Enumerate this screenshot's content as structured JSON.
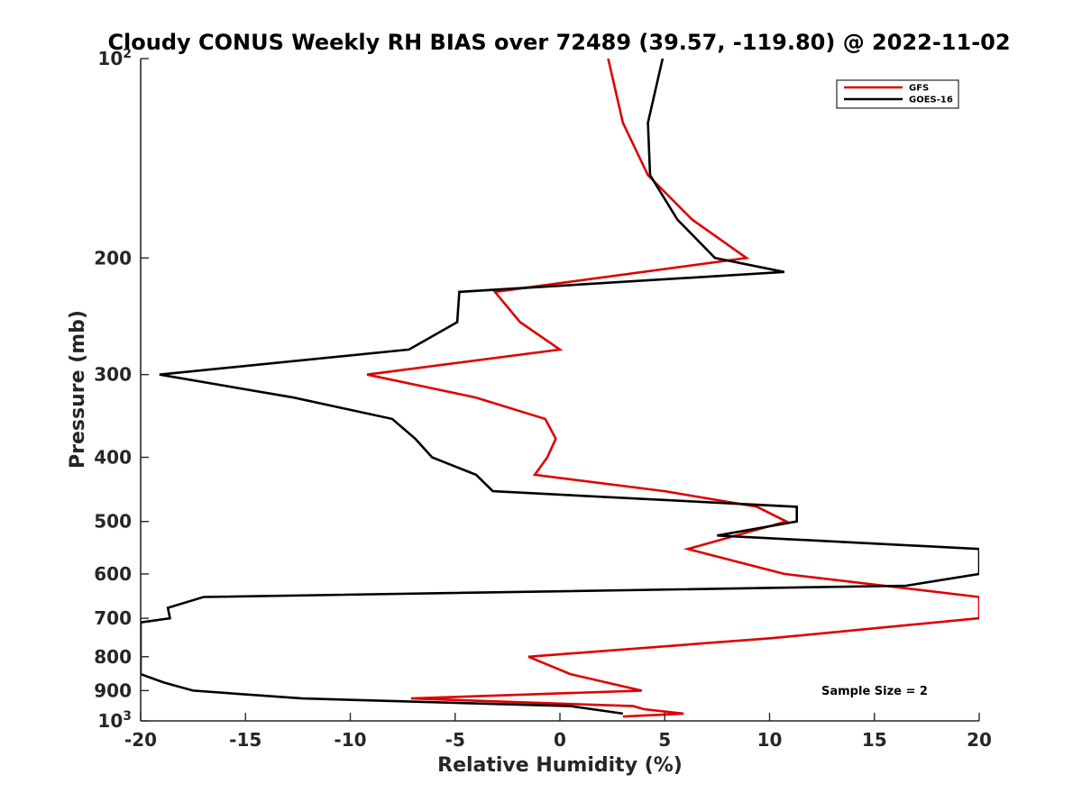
{
  "chart_data": {
    "type": "line",
    "title": "Cloudy CONUS Weekly RH BIAS over 72489 (39.57, -119.80) @ 2022-11-02",
    "xlabel": "Relative Humidity (%)",
    "ylabel": "Pressure (mb)",
    "xlim": [
      -20,
      20
    ],
    "ylim": [
      100,
      1000
    ],
    "y_scale": "log",
    "y_reversed": true,
    "grid": false,
    "legend_position": "top-right",
    "x_ticks": [
      -20,
      -15,
      -10,
      -5,
      0,
      5,
      10,
      15,
      20
    ],
    "x_tick_labels": [
      "-20",
      "-15",
      "-10",
      "-5",
      "0",
      "5",
      "10",
      "15",
      "20"
    ],
    "y_ticks": [
      {
        "value": 100,
        "base": "10",
        "exp": "2"
      },
      {
        "value": 200,
        "label": "200"
      },
      {
        "value": 300,
        "label": "300"
      },
      {
        "value": 400,
        "label": "400"
      },
      {
        "value": 500,
        "label": "500"
      },
      {
        "value": 600,
        "label": "600"
      },
      {
        "value": 700,
        "label": "700"
      },
      {
        "value": 800,
        "label": "800"
      },
      {
        "value": 900,
        "label": "900"
      },
      {
        "value": 1000,
        "base": "10",
        "exp": "3"
      }
    ],
    "series": [
      {
        "name": "GFS",
        "color": "#e00000",
        "points": [
          [
            2.3,
            100
          ],
          [
            3.0,
            125
          ],
          [
            4.2,
            150
          ],
          [
            6.3,
            175
          ],
          [
            8.9,
            200
          ],
          [
            -3.1,
            225
          ],
          [
            -1.9,
            250
          ],
          [
            0.0,
            275
          ],
          [
            -9.2,
            300
          ],
          [
            -4.0,
            325
          ],
          [
            -0.7,
            350
          ],
          [
            -0.2,
            375
          ],
          [
            -0.6,
            400
          ],
          [
            -1.2,
            425
          ],
          [
            5.0,
            450
          ],
          [
            9.4,
            475
          ],
          [
            10.8,
            500
          ],
          [
            6.1,
            550
          ],
          [
            10.7,
            600
          ],
          [
            20.0,
            650
          ],
          [
            20.0,
            700
          ],
          [
            10.1,
            750
          ],
          [
            -1.5,
            800
          ],
          [
            0.5,
            850
          ],
          [
            3.9,
            900
          ],
          [
            -7.1,
            925
          ],
          [
            3.5,
            950
          ],
          [
            4.0,
            960
          ],
          [
            5.9,
            975
          ],
          [
            3.0,
            985
          ]
        ]
      },
      {
        "name": "GOES-16",
        "color": "#000000",
        "points": [
          [
            4.9,
            100
          ],
          [
            4.2,
            125
          ],
          [
            4.3,
            150
          ],
          [
            5.6,
            175
          ],
          [
            7.4,
            200
          ],
          [
            10.7,
            210
          ],
          [
            -4.8,
            225
          ],
          [
            -4.9,
            250
          ],
          [
            -7.2,
            275
          ],
          [
            -19.1,
            300
          ],
          [
            -12.7,
            325
          ],
          [
            -8.0,
            350
          ],
          [
            -6.9,
            375
          ],
          [
            -6.1,
            400
          ],
          [
            -4.0,
            425
          ],
          [
            -3.2,
            450
          ],
          [
            11.3,
            475
          ],
          [
            11.3,
            500
          ],
          [
            7.5,
            525
          ],
          [
            20.0,
            550
          ],
          [
            20.0,
            600
          ],
          [
            16.5,
            625
          ],
          [
            -17.0,
            650
          ],
          [
            -18.7,
            675
          ],
          [
            -18.6,
            700
          ],
          [
            -20.0,
            710
          ],
          [
            -20.0,
            850
          ],
          [
            -18.9,
            875
          ],
          [
            -17.5,
            900
          ],
          [
            -12.3,
            925
          ],
          [
            0.5,
            950
          ],
          [
            3.0,
            975
          ]
        ]
      }
    ],
    "annotations": [
      "Sample Size = 2"
    ]
  }
}
